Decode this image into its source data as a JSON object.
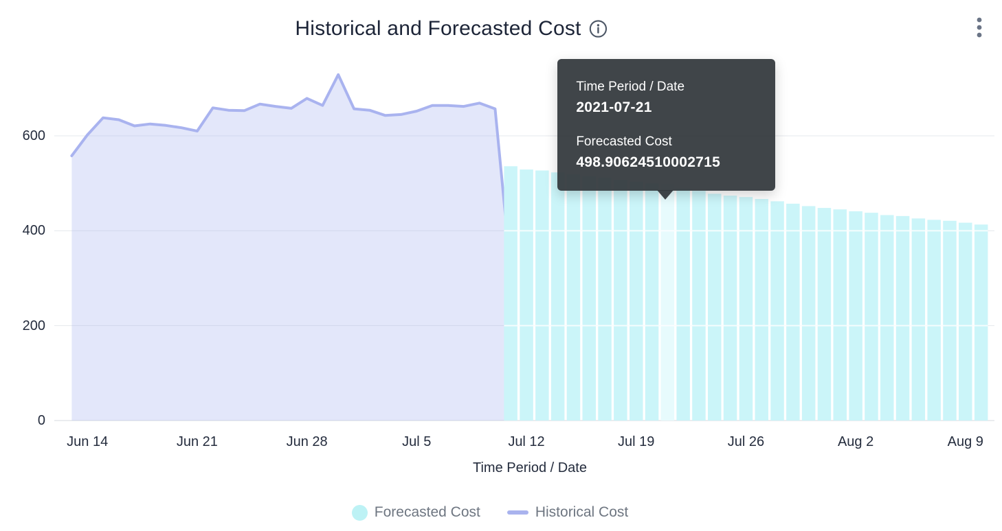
{
  "header": {
    "title": "Historical and Forecasted Cost"
  },
  "icons": {
    "info": "info-icon",
    "menu": "kebab-menu-icon"
  },
  "tooltip": {
    "rows": [
      {
        "label": "Time Period / Date",
        "value": "2021-07-21"
      },
      {
        "label": "Forecasted Cost",
        "value": "498.90624510002715"
      }
    ]
  },
  "legend": {
    "items": [
      {
        "label": "Forecasted Cost",
        "marker": "circle",
        "color": "#bdf2f5"
      },
      {
        "label": "Historical Cost",
        "marker": "line",
        "color": "#a9b3ee"
      }
    ]
  },
  "axes": {
    "x_title": "Time Period / Date",
    "y_ticks": [
      0,
      200,
      400,
      600
    ],
    "x_ticks": [
      {
        "label": "Jun 14",
        "date": "2021-06-14"
      },
      {
        "label": "Jun 21",
        "date": "2021-06-21"
      },
      {
        "label": "Jun 28",
        "date": "2021-06-28"
      },
      {
        "label": "Jul 5",
        "date": "2021-07-05"
      },
      {
        "label": "Jul 12",
        "date": "2021-07-12"
      },
      {
        "label": "Jul 19",
        "date": "2021-07-19"
      },
      {
        "label": "Jul 26",
        "date": "2021-07-26"
      },
      {
        "label": "Aug 2",
        "date": "2021-08-02"
      },
      {
        "label": "Aug 9",
        "date": "2021-08-09"
      }
    ]
  },
  "colors": {
    "historical_line": "#a9b3ef",
    "historical_fill": "rgba(169,179,239,0.32)",
    "forecast_bar": "#cbf5f9",
    "forecast_bar_highlight": "#e7fbfd",
    "gridline": "#e5e8ec",
    "axis_line": "#d5d9df",
    "axis_text": "#242c3d",
    "title_text": "#1c2437",
    "legend_text": "#6e7681",
    "tooltip_bg": "rgba(49,55,59,0.93)",
    "icon_gray": "#4d5766"
  },
  "chart_data": {
    "type": "combo",
    "title": "Historical and Forecasted Cost",
    "xlabel": "Time Period / Date",
    "ylabel": "",
    "ylim": [
      0,
      760
    ],
    "grid": true,
    "legend_position": "bottom",
    "highlight": {
      "series": "Forecasted Cost",
      "date": "2021-07-21",
      "value": 498.90624510002715
    },
    "series": [
      {
        "name": "Historical Cost",
        "type": "area-line",
        "data": [
          [
            "2021-06-13",
            558
          ],
          [
            "2021-06-14",
            602
          ],
          [
            "2021-06-15",
            638
          ],
          [
            "2021-06-16",
            634
          ],
          [
            "2021-06-17",
            621
          ],
          [
            "2021-06-18",
            625
          ],
          [
            "2021-06-19",
            622
          ],
          [
            "2021-06-20",
            617
          ],
          [
            "2021-06-21",
            610
          ],
          [
            "2021-06-22",
            659
          ],
          [
            "2021-06-23",
            654
          ],
          [
            "2021-06-24",
            653
          ],
          [
            "2021-06-25",
            667
          ],
          [
            "2021-06-26",
            662
          ],
          [
            "2021-06-27",
            658
          ],
          [
            "2021-06-28",
            679
          ],
          [
            "2021-06-29",
            664
          ],
          [
            "2021-06-30",
            729
          ],
          [
            "2021-07-01",
            657
          ],
          [
            "2021-07-02",
            654
          ],
          [
            "2021-07-03",
            643
          ],
          [
            "2021-07-04",
            645
          ],
          [
            "2021-07-05",
            652
          ],
          [
            "2021-07-06",
            664
          ],
          [
            "2021-07-07",
            664
          ],
          [
            "2021-07-08",
            662
          ],
          [
            "2021-07-09",
            669
          ],
          [
            "2021-07-10",
            657
          ],
          [
            "2021-07-11",
            315
          ]
        ]
      },
      {
        "name": "Forecasted Cost",
        "type": "bar",
        "data": [
          [
            "2021-07-11",
            536
          ],
          [
            "2021-07-12",
            529
          ],
          [
            "2021-07-13",
            527
          ],
          [
            "2021-07-14",
            523
          ],
          [
            "2021-07-15",
            519
          ],
          [
            "2021-07-16",
            515
          ],
          [
            "2021-07-17",
            511
          ],
          [
            "2021-07-18",
            507
          ],
          [
            "2021-07-19",
            503
          ],
          [
            "2021-07-20",
            500
          ],
          [
            "2021-07-21",
            498.90624510002715
          ],
          [
            "2021-07-22",
            489
          ],
          [
            "2021-07-23",
            484
          ],
          [
            "2021-07-24",
            478
          ],
          [
            "2021-07-25",
            474
          ],
          [
            "2021-07-26",
            471
          ],
          [
            "2021-07-27",
            467
          ],
          [
            "2021-07-28",
            462
          ],
          [
            "2021-07-29",
            457
          ],
          [
            "2021-07-30",
            452
          ],
          [
            "2021-07-31",
            448
          ],
          [
            "2021-08-01",
            445
          ],
          [
            "2021-08-02",
            441
          ],
          [
            "2021-08-03",
            438
          ],
          [
            "2021-08-04",
            433
          ],
          [
            "2021-08-05",
            431
          ],
          [
            "2021-08-06",
            426
          ],
          [
            "2021-08-07",
            423
          ],
          [
            "2021-08-08",
            421
          ],
          [
            "2021-08-09",
            417
          ],
          [
            "2021-08-10",
            413
          ]
        ]
      }
    ]
  }
}
